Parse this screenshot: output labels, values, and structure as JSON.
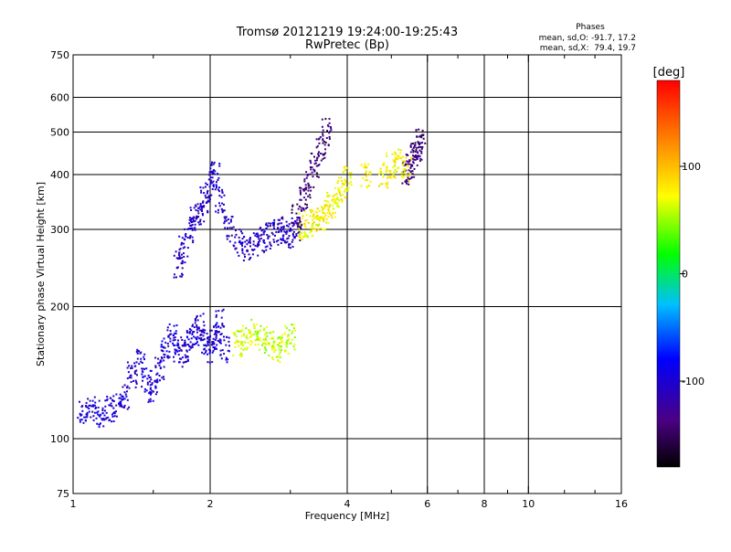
{
  "chart_data": {
    "type": "scatter",
    "title": "Tromsø 20121219 19:24:00-19:25:43",
    "subtitle": "RwPretec (Bp)",
    "xlabel": "Frequency [MHz]",
    "ylabel": "Stationary phase Virtual Height [km]",
    "x_scale": "log",
    "y_scale": "log",
    "xlim": [
      1,
      16
    ],
    "ylim": [
      75,
      750
    ],
    "x_ticks": [
      1,
      2,
      4,
      6,
      8,
      10,
      16
    ],
    "x_tick_labels": [
      "1",
      "2",
      "4",
      "6",
      "8",
      "10",
      "16"
    ],
    "x_minor_ticks": [
      1.5,
      3,
      5,
      7,
      9,
      12,
      14
    ],
    "y_ticks": [
      75,
      100,
      200,
      300,
      400,
      500,
      600,
      750
    ],
    "y_tick_labels": [
      "75",
      "100",
      "200",
      "300",
      "400",
      "500",
      "600",
      "750"
    ],
    "grid": true,
    "phase_stats": {
      "title": "Phases",
      "line1": "mean, sd,O: -91.7, 17.2",
      "line2": "mean, sd,X:  79.4, 19.7"
    },
    "colorbar": {
      "label": "[deg]",
      "range": [
        -180,
        180
      ],
      "ticks": [
        100,
        0,
        -100
      ],
      "tick_labels": [
        "100",
        "0",
        "-100"
      ],
      "colors": [
        "#000000",
        "#4b0082",
        "#0000ff",
        "#00bfff",
        "#00ff00",
        "#ffff00",
        "#ff8000",
        "#ff0000"
      ]
    },
    "series": [
      {
        "values_desc": "O-mode low trace",
        "points": [
          [
            1.05,
            115
          ],
          [
            1.1,
            116
          ],
          [
            1.15,
            114
          ],
          [
            1.2,
            117
          ],
          [
            1.25,
            120
          ],
          [
            1.3,
            125
          ],
          [
            1.35,
            140
          ],
          [
            1.4,
            150
          ],
          [
            1.45,
            135
          ],
          [
            1.5,
            130
          ],
          [
            1.55,
            145
          ],
          [
            1.6,
            160
          ],
          [
            1.65,
            170
          ],
          [
            1.7,
            160
          ],
          [
            1.75,
            155
          ],
          [
            1.8,
            165
          ],
          [
            1.85,
            175
          ],
          [
            1.9,
            180
          ],
          [
            1.95,
            165
          ],
          [
            2.0,
            160
          ],
          [
            2.05,
            170
          ],
          [
            2.1,
            185
          ],
          [
            2.15,
            160
          ]
        ],
        "phase": -100
      },
      {
        "values_desc": "O-mode F1 trace",
        "points": [
          [
            1.7,
            250
          ],
          [
            1.75,
            270
          ],
          [
            1.8,
            300
          ],
          [
            1.85,
            320
          ],
          [
            1.9,
            330
          ],
          [
            1.95,
            350
          ],
          [
            2.0,
            380
          ],
          [
            2.05,
            400
          ],
          [
            2.1,
            350
          ],
          [
            2.2,
            300
          ],
          [
            2.3,
            280
          ],
          [
            2.4,
            270
          ],
          [
            2.5,
            275
          ],
          [
            2.6,
            285
          ],
          [
            2.7,
            290
          ],
          [
            2.8,
            295
          ],
          [
            2.9,
            300
          ],
          [
            3.0,
            290
          ],
          [
            3.1,
            300
          ]
        ],
        "phase": -105
      },
      {
        "values_desc": "O-mode F2 trace",
        "points": [
          [
            3.1,
            320
          ],
          [
            3.2,
            350
          ],
          [
            3.3,
            380
          ],
          [
            3.4,
            420
          ],
          [
            3.5,
            460
          ],
          [
            3.6,
            500
          ],
          [
            5.4,
            400
          ],
          [
            5.5,
            420
          ],
          [
            5.6,
            440
          ],
          [
            5.7,
            460
          ],
          [
            5.8,
            480
          ]
        ],
        "phase": -140
      },
      {
        "values_desc": "X-mode trace",
        "points": [
          [
            3.2,
            305
          ],
          [
            3.3,
            310
          ],
          [
            3.4,
            315
          ],
          [
            3.5,
            320
          ],
          [
            3.6,
            330
          ],
          [
            3.7,
            340
          ],
          [
            3.8,
            350
          ],
          [
            3.9,
            370
          ],
          [
            4.0,
            390
          ],
          [
            4.4,
            400
          ],
          [
            4.8,
            400
          ],
          [
            5.0,
            420
          ],
          [
            5.2,
            430
          ],
          [
            5.4,
            410
          ]
        ],
        "phase": 75
      },
      {
        "values_desc": "X-mode low trace",
        "points": [
          [
            2.3,
            165
          ],
          [
            2.4,
            170
          ],
          [
            2.5,
            175
          ],
          [
            2.6,
            170
          ],
          [
            2.7,
            165
          ],
          [
            2.8,
            160
          ],
          [
            2.9,
            165
          ],
          [
            3.0,
            170
          ]
        ],
        "phase": 60
      }
    ]
  }
}
